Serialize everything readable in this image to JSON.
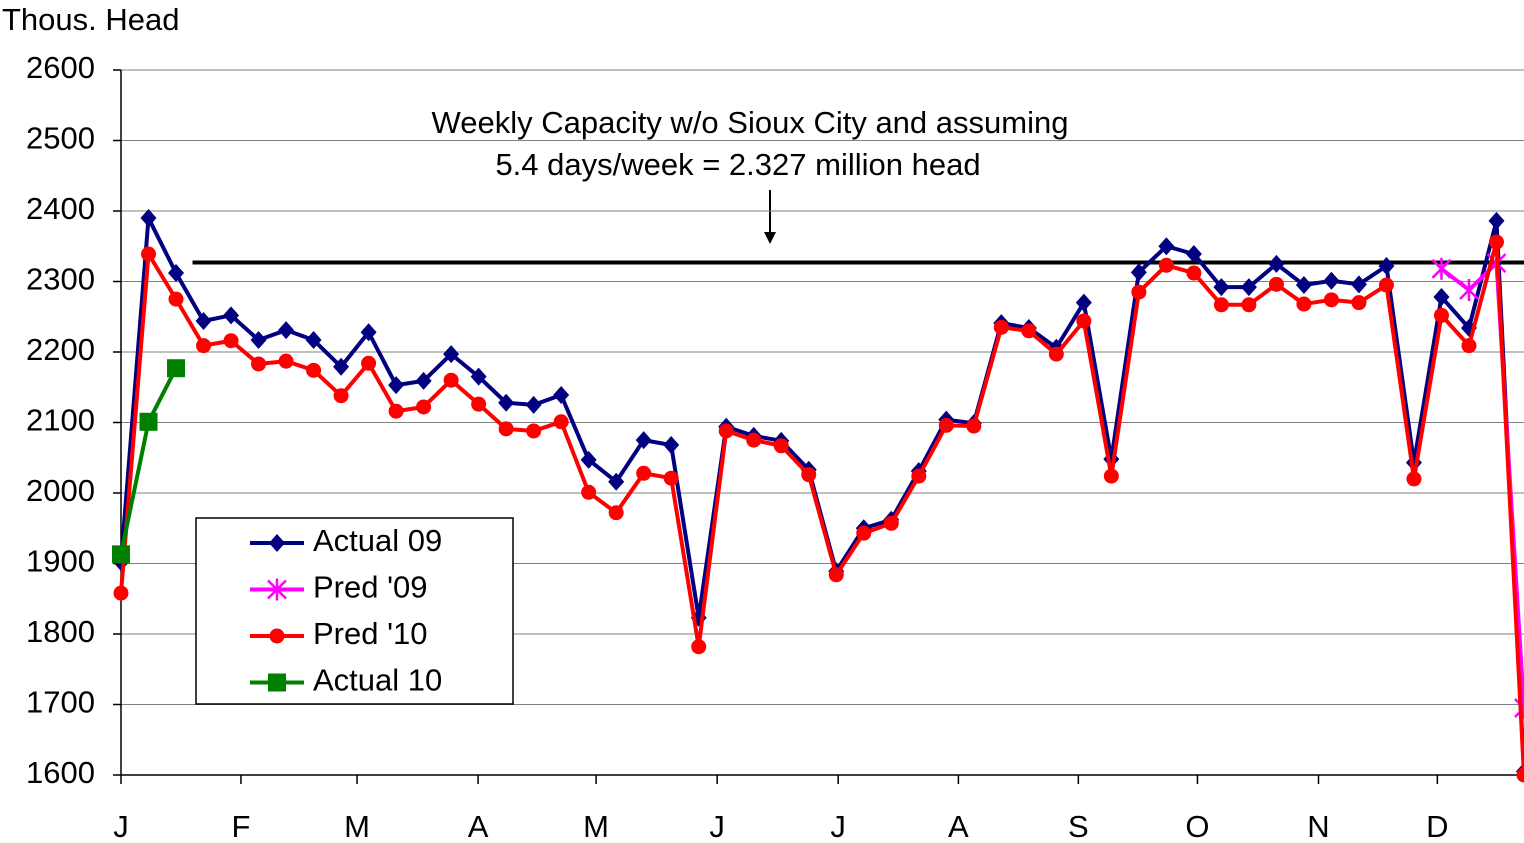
{
  "chart_data": {
    "type": "line",
    "y_label": "Thous. Head",
    "annotation": [
      "Weekly Capacity w/o Sioux City and assuming",
      "5.4 days/week = 2.327 million head"
    ],
    "reference_line": {
      "value": 2327,
      "x": [
        2.6,
        51
      ],
      "color": "#000000"
    },
    "x": [
      0,
      1,
      2,
      3,
      4,
      5,
      6,
      7,
      8,
      9,
      10,
      11,
      12,
      13,
      14,
      15,
      16,
      17,
      18,
      19,
      20,
      21,
      22,
      23,
      24,
      25,
      26,
      27,
      28,
      29,
      30,
      31,
      32,
      33,
      34,
      35,
      36,
      37,
      38,
      39,
      40,
      41,
      42,
      43,
      44,
      45,
      46,
      47,
      48,
      49,
      50,
      51
    ],
    "xlim": [
      0,
      51
    ],
    "xticks": [
      {
        "value": 0,
        "label": "J"
      },
      {
        "value": 4.36,
        "label": "F"
      },
      {
        "value": 8.58,
        "label": "M"
      },
      {
        "value": 12.98,
        "label": "A"
      },
      {
        "value": 17.27,
        "label": "M"
      },
      {
        "value": 21.67,
        "label": "J"
      },
      {
        "value": 26.07,
        "label": "J"
      },
      {
        "value": 30.44,
        "label": "A"
      },
      {
        "value": 34.8,
        "label": "S"
      },
      {
        "value": 39.13,
        "label": "O"
      },
      {
        "value": 43.53,
        "label": "N"
      },
      {
        "value": 47.85,
        "label": "D"
      }
    ],
    "ylim": [
      1600,
      2600
    ],
    "yticks": [
      1600,
      1700,
      1800,
      1900,
      2000,
      2100,
      2200,
      2300,
      2400,
      2500,
      2600
    ],
    "grid": true,
    "legend": "lower left",
    "series": [
      {
        "name": "Actual 09",
        "color": "#000080",
        "marker": "diamond",
        "values": [
          1902,
          2390,
          2312,
          2244,
          2252,
          2217,
          2231,
          2217,
          2179,
          2228,
          2153,
          2159,
          2197,
          2165,
          2128,
          2125,
          2139,
          2047,
          2016,
          2075,
          2068,
          1823,
          2094,
          2081,
          2074,
          2033,
          1889,
          1950,
          1962,
          2031,
          2104,
          2099,
          2241,
          2234,
          2206,
          2270,
          2048,
          2313,
          2350,
          2339,
          2292,
          2292,
          2325,
          2295,
          2301,
          2296,
          2322,
          2043,
          2278,
          2234,
          2386,
          1605
        ]
      },
      {
        "name": "Pred '09",
        "color": "#ff00ff",
        "marker": "star",
        "values": [
          null,
          null,
          null,
          null,
          null,
          null,
          null,
          null,
          null,
          null,
          null,
          null,
          null,
          null,
          null,
          null,
          null,
          null,
          null,
          null,
          null,
          null,
          null,
          null,
          null,
          null,
          null,
          null,
          null,
          null,
          null,
          null,
          null,
          null,
          null,
          null,
          null,
          null,
          null,
          null,
          null,
          null,
          null,
          null,
          null,
          null,
          null,
          null,
          2318,
          2288,
          2326,
          1695
        ]
      },
      {
        "name": "Pred '10",
        "color": "#ff0000",
        "marker": "circle",
        "values": [
          1858,
          2339,
          2275,
          2209,
          2216,
          2183,
          2187,
          2174,
          2138,
          2184,
          2116,
          2122,
          2160,
          2126,
          2091,
          2088,
          2101,
          2001,
          1972,
          2028,
          2021,
          1782,
          2088,
          2075,
          2067,
          2026,
          1884,
          1943,
          1957,
          2024,
          2096,
          2095,
          2235,
          2230,
          2197,
          2244,
          2024,
          2285,
          2323,
          2312,
          2267,
          2267,
          2296,
          2268,
          2274,
          2270,
          2295,
          2020,
          2252,
          2209,
          2356,
          1600
        ]
      },
      {
        "name": "Actual 10",
        "color": "#008000",
        "marker": "square",
        "values": [
          1913,
          2101,
          2177,
          null,
          null,
          null,
          null,
          null,
          null,
          null,
          null,
          null,
          null,
          null,
          null,
          null,
          null,
          null,
          null,
          null,
          null,
          null,
          null,
          null,
          null,
          null,
          null,
          null,
          null,
          null,
          null,
          null,
          null,
          null,
          null,
          null,
          null,
          null,
          null,
          null,
          null,
          null,
          null,
          null,
          null,
          null,
          null,
          null,
          null,
          null,
          null,
          null
        ]
      }
    ]
  }
}
